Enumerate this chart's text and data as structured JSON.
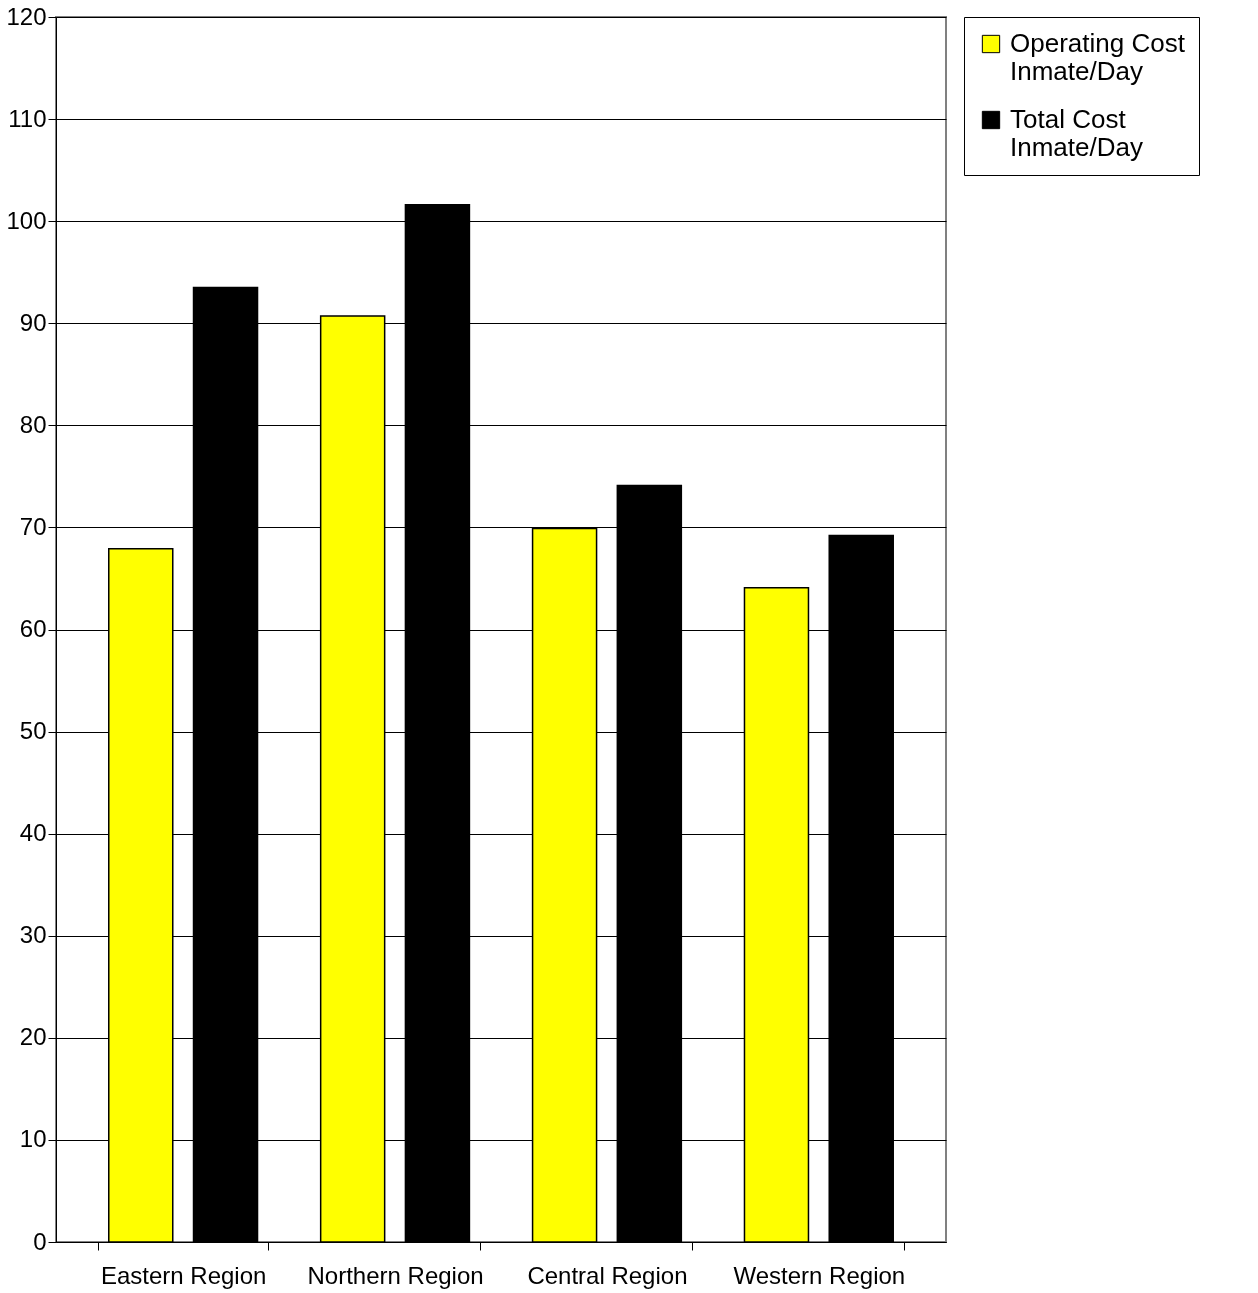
{
  "chart_data": {
    "type": "bar",
    "categories": [
      "Eastern Region",
      "Northern Region",
      "Central Region",
      "Western Region"
    ],
    "series": [
      {
        "name": "Operating Cost Inmate/Day",
        "color": "#ffff00",
        "values": [
          67.9,
          90.7,
          69.9,
          64.1
        ]
      },
      {
        "name": "Total Cost Inmate/Day",
        "color": "#000000",
        "values": [
          93.5,
          101.6,
          74.1,
          69.2
        ]
      }
    ],
    "ylim": [
      0,
      120
    ],
    "yticks": [
      0,
      10,
      20,
      30,
      40,
      50,
      60,
      70,
      80,
      90,
      100,
      110,
      120
    ],
    "grid": "y",
    "legend": "right"
  }
}
